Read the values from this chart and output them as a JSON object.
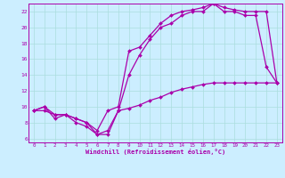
{
  "bg_color": "#cceeff",
  "line_color": "#aa00aa",
  "grid_color": "#aadddd",
  "xlim": [
    -0.5,
    23.5
  ],
  "ylim": [
    5.5,
    23.0
  ],
  "xticks": [
    0,
    1,
    2,
    3,
    4,
    5,
    6,
    7,
    8,
    9,
    10,
    11,
    12,
    13,
    14,
    15,
    16,
    17,
    18,
    19,
    20,
    21,
    22,
    23
  ],
  "yticks": [
    6,
    8,
    10,
    12,
    14,
    16,
    18,
    20,
    22
  ],
  "xlabel": "Windchill (Refroidissement éolien,°C)",
  "line1_x": [
    0,
    1,
    2,
    3,
    4,
    5,
    6,
    7,
    8,
    9,
    10,
    11,
    12,
    13,
    14,
    15,
    16,
    17,
    18,
    19,
    20,
    21,
    22,
    23
  ],
  "line1_y": [
    9.5,
    10.0,
    9.0,
    9.0,
    8.5,
    8.0,
    6.5,
    6.5,
    9.5,
    9.8,
    10.2,
    10.8,
    11.2,
    11.8,
    12.2,
    12.5,
    12.8,
    13.0,
    13.0,
    13.0,
    13.0,
    13.0,
    13.0,
    13.0
  ],
  "line2_x": [
    0,
    1,
    2,
    3,
    4,
    5,
    6,
    7,
    8,
    9,
    10,
    11,
    12,
    13,
    14,
    15,
    16,
    17,
    18,
    19,
    20,
    21,
    22,
    23
  ],
  "line2_y": [
    9.5,
    10.0,
    8.5,
    9.0,
    8.0,
    7.5,
    6.5,
    7.0,
    9.5,
    14.0,
    16.5,
    18.5,
    20.0,
    20.5,
    21.5,
    22.0,
    22.0,
    23.0,
    22.0,
    22.0,
    21.5,
    21.5,
    15.0,
    13.0
  ],
  "line3_x": [
    0,
    1,
    2,
    3,
    4,
    5,
    6,
    7,
    8,
    9,
    10,
    11,
    12,
    13,
    14,
    15,
    16,
    17,
    18,
    19,
    20,
    21,
    22,
    23
  ],
  "line3_y": [
    9.5,
    9.5,
    9.0,
    9.0,
    8.5,
    8.0,
    7.0,
    9.5,
    10.0,
    17.0,
    17.5,
    19.0,
    20.5,
    21.5,
    22.0,
    22.2,
    22.5,
    23.0,
    22.5,
    22.2,
    22.0,
    22.0,
    22.0,
    13.0
  ]
}
